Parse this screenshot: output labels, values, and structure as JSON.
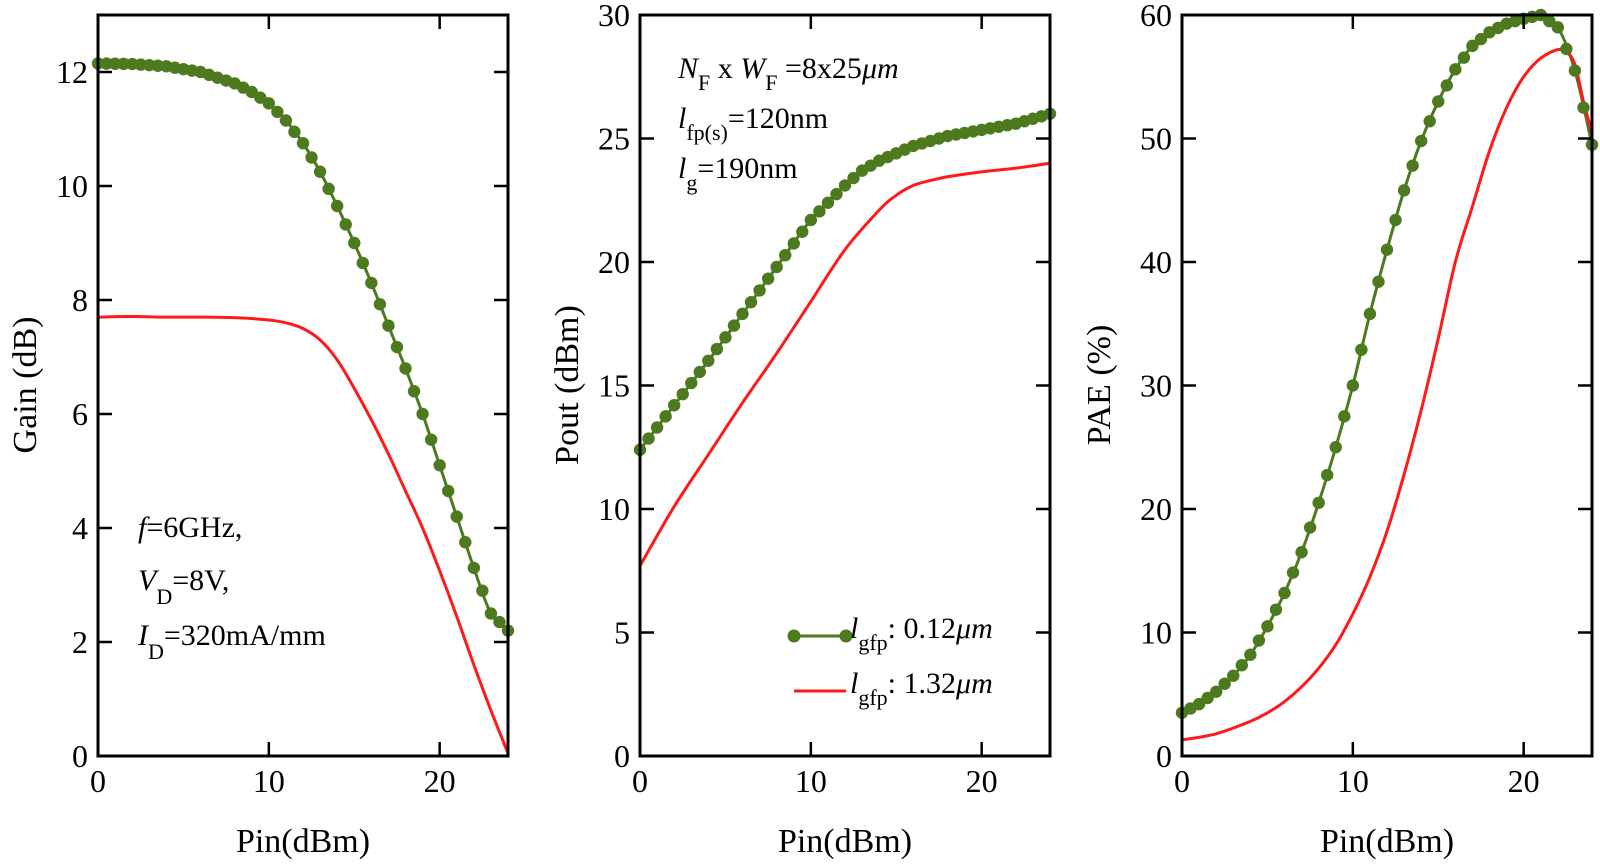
{
  "colors": {
    "green": "#4d7a1f",
    "red": "#ff1a1a",
    "axis": "#000000"
  },
  "legend": [
    {
      "var": "l",
      "sub": "gfp",
      "text": ": 0.12",
      "unit": "μm",
      "style": "line-marker",
      "color": "#4d7a1f"
    },
    {
      "var": "l",
      "sub": "gfp",
      "text": ": 1.32",
      "unit": "μm",
      "style": "line",
      "color": "#ff1a1a"
    }
  ],
  "annotations": {
    "gain": [
      {
        "var": "f",
        "sub": "",
        "text": "=6GHz,"
      },
      {
        "var": "V",
        "sub": "D",
        "text": "=8V,"
      },
      {
        "var": "I",
        "sub": "D",
        "text": "=320mA/mm"
      }
    ],
    "pout": [
      {
        "var": "N",
        "sub": "F",
        "mid": " x ",
        "var2": "W",
        "sub2": "F",
        "text": " =8x25",
        "unit": "μm"
      },
      {
        "var": "l",
        "sub": "fp(s)",
        "text": "=120nm"
      },
      {
        "var": "l",
        "sub": "g",
        "text": "=190nm"
      }
    ]
  },
  "chart_data": [
    {
      "type": "line",
      "id": "gain",
      "title": "",
      "xlabel": "Pin(dBm)",
      "ylabel": "Gain (dB)",
      "xlim": [
        0,
        24
      ],
      "ylim": [
        0,
        13
      ],
      "xticks": [
        0,
        10,
        20
      ],
      "yticks": [
        0,
        2,
        4,
        6,
        8,
        10,
        12
      ],
      "series": [
        {
          "name": "lgfp: 0.12μm",
          "color": "#4d7a1f",
          "markers": true,
          "marker_step": 0.5,
          "x": [
            0,
            2,
            4,
            6,
            8,
            9,
            10,
            11,
            12,
            13,
            14,
            15,
            16,
            17,
            18,
            19,
            20,
            21,
            22,
            23,
            24
          ],
          "y": [
            12.15,
            12.14,
            12.1,
            12.0,
            11.8,
            11.65,
            11.45,
            11.15,
            10.75,
            10.25,
            9.65,
            9.0,
            8.3,
            7.55,
            6.8,
            6.0,
            5.1,
            4.2,
            3.3,
            2.5,
            2.2
          ]
        },
        {
          "name": "lgfp: 1.32μm",
          "color": "#ff1a1a",
          "markers": false,
          "x": [
            0,
            2,
            4,
            6,
            8,
            10,
            11,
            12,
            13,
            14,
            15,
            16,
            17,
            18,
            19,
            20,
            21,
            22,
            23,
            24
          ],
          "y": [
            7.7,
            7.71,
            7.7,
            7.7,
            7.69,
            7.65,
            7.6,
            7.5,
            7.3,
            6.95,
            6.45,
            5.9,
            5.3,
            4.65,
            4.0,
            3.25,
            2.45,
            1.6,
            0.8,
            0.05
          ]
        }
      ]
    },
    {
      "type": "line",
      "id": "pout",
      "title": "",
      "xlabel": "Pin(dBm)",
      "ylabel": "Pout (dBm)",
      "xlim": [
        0,
        24
      ],
      "ylim": [
        0,
        30
      ],
      "xticks": [
        0,
        10,
        20
      ],
      "yticks": [
        0,
        5,
        10,
        15,
        20,
        25,
        30
      ],
      "series": [
        {
          "name": "lgfp: 0.12μm",
          "color": "#4d7a1f",
          "markers": true,
          "marker_step": 0.5,
          "x": [
            0,
            2,
            4,
            6,
            8,
            10,
            12,
            13,
            14,
            16,
            18,
            20,
            22,
            24
          ],
          "y": [
            12.4,
            14.2,
            16.0,
            17.9,
            19.8,
            21.7,
            23.1,
            23.7,
            24.1,
            24.7,
            25.1,
            25.35,
            25.6,
            26.0
          ]
        },
        {
          "name": "lgfp: 1.32μm",
          "color": "#ff1a1a",
          "markers": false,
          "x": [
            0,
            2,
            4,
            6,
            8,
            10,
            12,
            14,
            15,
            16,
            17,
            18,
            20,
            22,
            24
          ],
          "y": [
            7.7,
            10.1,
            12.2,
            14.3,
            16.3,
            18.4,
            20.5,
            22.1,
            22.7,
            23.1,
            23.3,
            23.45,
            23.65,
            23.8,
            24.0
          ]
        }
      ]
    },
    {
      "type": "line",
      "id": "pae",
      "title": "",
      "xlabel": "Pin(dBm)",
      "ylabel": "PAE (%)",
      "xlim": [
        0,
        24
      ],
      "ylim": [
        0,
        60
      ],
      "xticks": [
        0,
        10,
        20
      ],
      "yticks": [
        0,
        10,
        20,
        30,
        40,
        50,
        60
      ],
      "series": [
        {
          "name": "lgfp: 0.12μm",
          "color": "#4d7a1f",
          "markers": true,
          "marker_step": 0.5,
          "x": [
            0,
            1,
            2,
            3,
            4,
            5,
            6,
            7,
            8,
            9,
            10,
            11,
            12,
            13,
            14,
            15,
            16,
            17,
            18,
            19,
            20,
            21,
            22,
            23,
            24
          ],
          "y": [
            3.5,
            4.2,
            5.2,
            6.5,
            8.2,
            10.5,
            13.2,
            16.5,
            20.5,
            25.0,
            30.0,
            35.8,
            41.0,
            45.8,
            49.8,
            53.0,
            55.6,
            57.5,
            58.6,
            59.3,
            59.7,
            60.0,
            59.0,
            55.5,
            49.5
          ]
        },
        {
          "name": "lgfp: 1.32μm",
          "color": "#ff1a1a",
          "markers": false,
          "x": [
            0,
            2,
            4,
            5,
            6,
            7,
            8,
            9,
            10,
            11,
            12,
            13,
            14,
            15,
            16,
            17,
            18,
            19,
            20,
            21,
            22,
            22.5,
            23,
            23.5,
            24
          ],
          "y": [
            1.3,
            1.8,
            2.8,
            3.5,
            4.4,
            5.6,
            7.1,
            9.0,
            11.5,
            14.5,
            18.2,
            22.8,
            28.0,
            33.8,
            40.0,
            44.5,
            49.0,
            52.5,
            55.0,
            56.5,
            57.2,
            57.0,
            56.0,
            53.0,
            50.5
          ]
        }
      ]
    }
  ]
}
